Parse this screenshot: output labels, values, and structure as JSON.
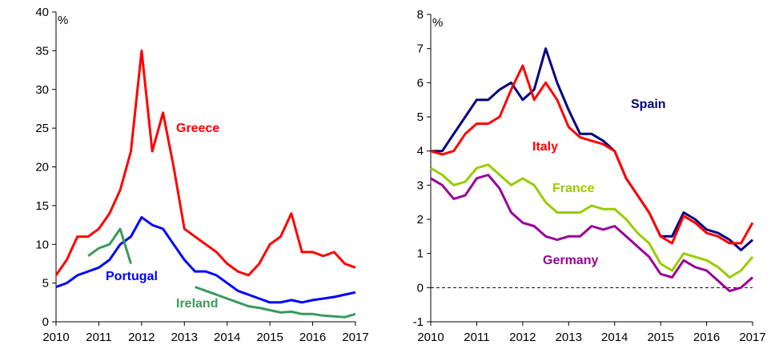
{
  "chart_data": [
    {
      "type": "line",
      "y_label": "%",
      "x": [
        2010,
        2010.25,
        2010.5,
        2010.75,
        2011,
        2011.25,
        2011.5,
        2011.75,
        2012,
        2012.25,
        2012.5,
        2012.75,
        2013,
        2013.25,
        2013.5,
        2013.75,
        2014,
        2014.25,
        2014.5,
        2014.75,
        2015,
        2015.25,
        2015.5,
        2015.75,
        2016,
        2016.25,
        2016.5,
        2016.75,
        2017
      ],
      "xlim": [
        2010,
        2017
      ],
      "xticks": [
        2010,
        2011,
        2012,
        2013,
        2014,
        2015,
        2016,
        2017
      ],
      "ylim": [
        0,
        40
      ],
      "yticks": [
        0,
        5,
        10,
        15,
        20,
        25,
        30,
        35,
        40
      ],
      "series": [
        {
          "name": "Greece",
          "color": "#ff0000",
          "values": [
            6,
            8,
            11,
            11,
            12,
            14,
            17,
            22,
            35,
            22,
            27,
            20,
            12,
            11,
            10,
            9,
            7.5,
            6.5,
            6,
            7.5,
            10,
            11,
            14,
            9,
            9,
            8.5,
            9,
            7.5,
            7
          ]
        },
        {
          "name": "Portugal",
          "color": "#0000ff",
          "values": [
            4.5,
            5,
            6,
            6.5,
            7,
            8,
            10,
            11,
            13.5,
            12.5,
            12,
            10,
            8,
            6.5,
            6.5,
            6,
            5,
            4,
            3.5,
            3,
            2.5,
            2.5,
            2.8,
            2.5,
            2.8,
            3,
            3.2,
            3.5,
            3.8
          ]
        },
        {
          "name": "Ireland",
          "color": "#3a9a5b",
          "values": [
            null,
            null,
            null,
            8.5,
            9.5,
            10,
            12,
            7.5,
            null,
            null,
            null,
            null,
            null,
            4.5,
            4,
            3.5,
            3,
            2.5,
            2,
            1.8,
            1.5,
            1.2,
            1.3,
            1,
            1,
            0.8,
            0.7,
            0.6,
            1
          ]
        }
      ]
    },
    {
      "type": "line",
      "y_label": "%",
      "x": [
        2010,
        2010.25,
        2010.5,
        2010.75,
        2011,
        2011.25,
        2011.5,
        2011.75,
        2012,
        2012.25,
        2012.5,
        2012.75,
        2013,
        2013.25,
        2013.5,
        2013.75,
        2014,
        2014.25,
        2014.5,
        2014.75,
        2015,
        2015.25,
        2015.5,
        2015.75,
        2016,
        2016.25,
        2016.5,
        2016.75,
        2017
      ],
      "xlim": [
        2010,
        2017
      ],
      "xticks": [
        2010,
        2011,
        2012,
        2013,
        2014,
        2015,
        2016,
        2017
      ],
      "ylim": [
        -1,
        8
      ],
      "yticks": [
        -1,
        0,
        1,
        2,
        3,
        4,
        5,
        6,
        7,
        8
      ],
      "reference_line": 0,
      "series": [
        {
          "name": "Spain",
          "color": "#000080",
          "values": [
            4,
            4,
            4.5,
            5,
            5.5,
            5.5,
            5.8,
            6,
            5.5,
            5.8,
            7,
            6,
            5.2,
            4.5,
            4.5,
            4.3,
            4,
            3.2,
            2.7,
            2.2,
            1.5,
            1.5,
            2.2,
            2,
            1.7,
            1.6,
            1.4,
            1.1,
            1.4
          ]
        },
        {
          "name": "Italy",
          "color": "#ff0000",
          "values": [
            4,
            3.9,
            4,
            4.5,
            4.8,
            4.8,
            5,
            5.8,
            6.5,
            5.5,
            6,
            5.5,
            4.7,
            4.4,
            4.3,
            4.2,
            4,
            3.2,
            2.7,
            2.2,
            1.5,
            1.3,
            2.1,
            1.9,
            1.6,
            1.5,
            1.3,
            1.3,
            1.9
          ]
        },
        {
          "name": "France",
          "color": "#99cc00",
          "values": [
            3.5,
            3.3,
            3,
            3.1,
            3.5,
            3.6,
            3.3,
            3,
            3.2,
            3,
            2.5,
            2.2,
            2.2,
            2.2,
            2.4,
            2.3,
            2.3,
            2,
            1.6,
            1.3,
            0.7,
            0.5,
            1,
            0.9,
            0.8,
            0.6,
            0.3,
            0.5,
            0.9
          ]
        },
        {
          "name": "Germany",
          "color": "#990099",
          "values": [
            3.2,
            3,
            2.6,
            2.7,
            3.2,
            3.3,
            2.9,
            2.2,
            1.9,
            1.8,
            1.5,
            1.4,
            1.5,
            1.5,
            1.8,
            1.7,
            1.8,
            1.5,
            1.2,
            0.9,
            0.4,
            0.3,
            0.8,
            0.6,
            0.5,
            0.2,
            -0.1,
            0,
            0.3
          ]
        }
      ]
    }
  ]
}
